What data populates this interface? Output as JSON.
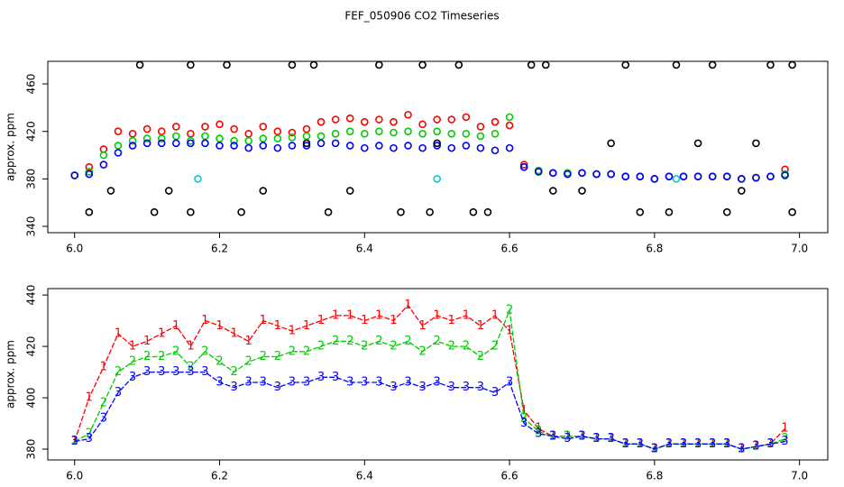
{
  "title": "FEF_050906  CO2 Timeseries",
  "chart_data": [
    {
      "type": "scatter",
      "ylabel": "approx. ppm",
      "x": [
        6.0,
        6.02,
        6.04,
        6.06,
        6.08,
        6.1,
        6.12,
        6.14,
        6.16,
        6.18,
        6.2,
        6.22,
        6.24,
        6.26,
        6.28,
        6.3,
        6.32,
        6.34,
        6.36,
        6.38,
        6.4,
        6.42,
        6.44,
        6.46,
        6.48,
        6.5,
        6.52,
        6.54,
        6.56,
        6.58,
        6.6,
        6.62,
        6.64,
        6.66,
        6.68,
        6.7,
        6.72,
        6.74,
        6.76,
        6.78,
        6.8,
        6.82,
        6.84,
        6.86,
        6.88,
        6.9,
        6.92,
        6.94,
        6.96,
        6.98
      ],
      "xlim": [
        5.963,
        7.039
      ],
      "ylim": [
        334.7,
        479
      ],
      "xticks": [
        {
          "value": 6,
          "label": "6.0"
        },
        6.2,
        6.4,
        6.6,
        6.8,
        {
          "value": 7,
          "label": "7.0"
        }
      ],
      "yticks": [
        340,
        380,
        420,
        460
      ],
      "series": [
        {
          "color": "#ff0000",
          "values": [
            383,
            390,
            405,
            420,
            418,
            422,
            420,
            424,
            418,
            424,
            426,
            422,
            418,
            424,
            420,
            419,
            422,
            428,
            430,
            431,
            428,
            430,
            428,
            434,
            426,
            430,
            430,
            432,
            424,
            428,
            425,
            392,
            387,
            385,
            385,
            385,
            384,
            384,
            382,
            382,
            380,
            382,
            382,
            382,
            382,
            382,
            380,
            381,
            382,
            388
          ]
        },
        {
          "color": "#00cd00",
          "values": [
            383,
            386,
            400,
            408,
            412,
            414,
            414,
            416,
            412,
            416,
            414,
            412,
            412,
            414,
            414,
            415,
            416,
            416,
            418,
            420,
            418,
            420,
            419,
            420,
            418,
            420,
            418,
            418,
            416,
            418,
            432,
            390,
            387,
            385,
            385,
            385,
            384,
            384,
            382,
            382,
            380,
            382,
            382,
            382,
            382,
            382,
            380,
            381,
            382,
            384
          ]
        },
        {
          "color": "#0000ff",
          "values": [
            383,
            384,
            392,
            402,
            408,
            410,
            410,
            410,
            410,
            410,
            408,
            408,
            406,
            408,
            406,
            408,
            408,
            410,
            410,
            408,
            406,
            408,
            406,
            408,
            406,
            408,
            406,
            408,
            406,
            404,
            406,
            390,
            386,
            385,
            384,
            385,
            384,
            384,
            382,
            382,
            380,
            382,
            382,
            382,
            382,
            382,
            380,
            381,
            382,
            383
          ]
        },
        {
          "color": "#000000",
          "x": [
            6.02,
            6.05,
            6.09,
            6.11,
            6.13,
            6.16,
            6.16,
            6.21,
            6.23,
            6.26,
            6.3,
            6.32,
            6.33,
            6.35,
            6.38,
            6.42,
            6.45,
            6.48,
            6.49,
            6.5,
            6.53,
            6.55,
            6.57,
            6.63,
            6.65,
            6.66,
            6.7,
            6.74,
            6.76,
            6.78,
            6.82,
            6.83,
            6.86,
            6.88,
            6.9,
            6.92,
            6.94,
            6.96,
            6.99,
            6.99
          ],
          "values": [
            352,
            370,
            476,
            352,
            370,
            476,
            352,
            476,
            352,
            370,
            476,
            410,
            476,
            352,
            370,
            476,
            352,
            476,
            352,
            410,
            476,
            352,
            352,
            476,
            476,
            370,
            370,
            410,
            476,
            352,
            352,
            476,
            410,
            476,
            352,
            370,
            410,
            476,
            476,
            352
          ]
        },
        {
          "color": "#00cdcd",
          "x": [
            6.17,
            6.5,
            6.83
          ],
          "values": [
            380,
            380,
            380
          ]
        }
      ]
    },
    {
      "type": "line",
      "ylabel": "approx. ppm",
      "x": [
        6.0,
        6.02,
        6.04,
        6.06,
        6.08,
        6.1,
        6.12,
        6.14,
        6.16,
        6.18,
        6.2,
        6.22,
        6.24,
        6.26,
        6.28,
        6.3,
        6.32,
        6.34,
        6.36,
        6.38,
        6.4,
        6.42,
        6.44,
        6.46,
        6.48,
        6.5,
        6.52,
        6.54,
        6.56,
        6.58,
        6.6,
        6.62,
        6.64,
        6.66,
        6.68,
        6.7,
        6.72,
        6.74,
        6.76,
        6.78,
        6.8,
        6.82,
        6.84,
        6.86,
        6.88,
        6.9,
        6.92,
        6.94,
        6.96,
        6.98
      ],
      "xlim": [
        5.963,
        7.039
      ],
      "ylim": [
        375.8,
        442.5
      ],
      "xticks": [
        {
          "value": 6,
          "label": "6.0"
        },
        6.2,
        6.4,
        6.6,
        6.8,
        {
          "value": 7,
          "label": "7.0"
        }
      ],
      "yticks": [
        380,
        400,
        420,
        440
      ],
      "series": [
        {
          "marker": "1",
          "color": "#ff0000",
          "values": [
            383,
            400,
            412,
            425,
            420,
            422,
            425,
            428,
            420,
            430,
            428,
            425,
            422,
            430,
            428,
            426,
            428,
            430,
            432,
            432,
            430,
            432,
            430,
            436,
            428,
            432,
            430,
            432,
            428,
            432,
            426,
            395,
            388,
            385,
            385,
            385,
            384,
            384,
            382,
            382,
            380,
            382,
            382,
            382,
            382,
            382,
            380,
            381,
            382,
            388
          ]
        },
        {
          "marker": "2",
          "color": "#00cd00",
          "values": [
            383,
            386,
            398,
            410,
            414,
            416,
            416,
            418,
            412,
            418,
            414,
            410,
            414,
            416,
            416,
            418,
            418,
            420,
            422,
            422,
            420,
            422,
            420,
            422,
            418,
            422,
            420,
            420,
            416,
            420,
            434,
            392,
            387,
            385,
            385,
            385,
            384,
            384,
            382,
            382,
            380,
            382,
            382,
            382,
            382,
            382,
            380,
            381,
            382,
            384
          ]
        },
        {
          "marker": "3",
          "color": "#0000ff",
          "values": [
            383,
            384,
            392,
            402,
            408,
            410,
            410,
            410,
            410,
            410,
            406,
            404,
            406,
            406,
            404,
            406,
            406,
            408,
            408,
            406,
            406,
            406,
            404,
            406,
            404,
            406,
            404,
            404,
            404,
            402,
            406,
            390,
            386,
            385,
            384,
            385,
            384,
            384,
            382,
            382,
            380,
            382,
            382,
            382,
            382,
            382,
            380,
            381,
            382,
            383
          ]
        }
      ]
    }
  ]
}
